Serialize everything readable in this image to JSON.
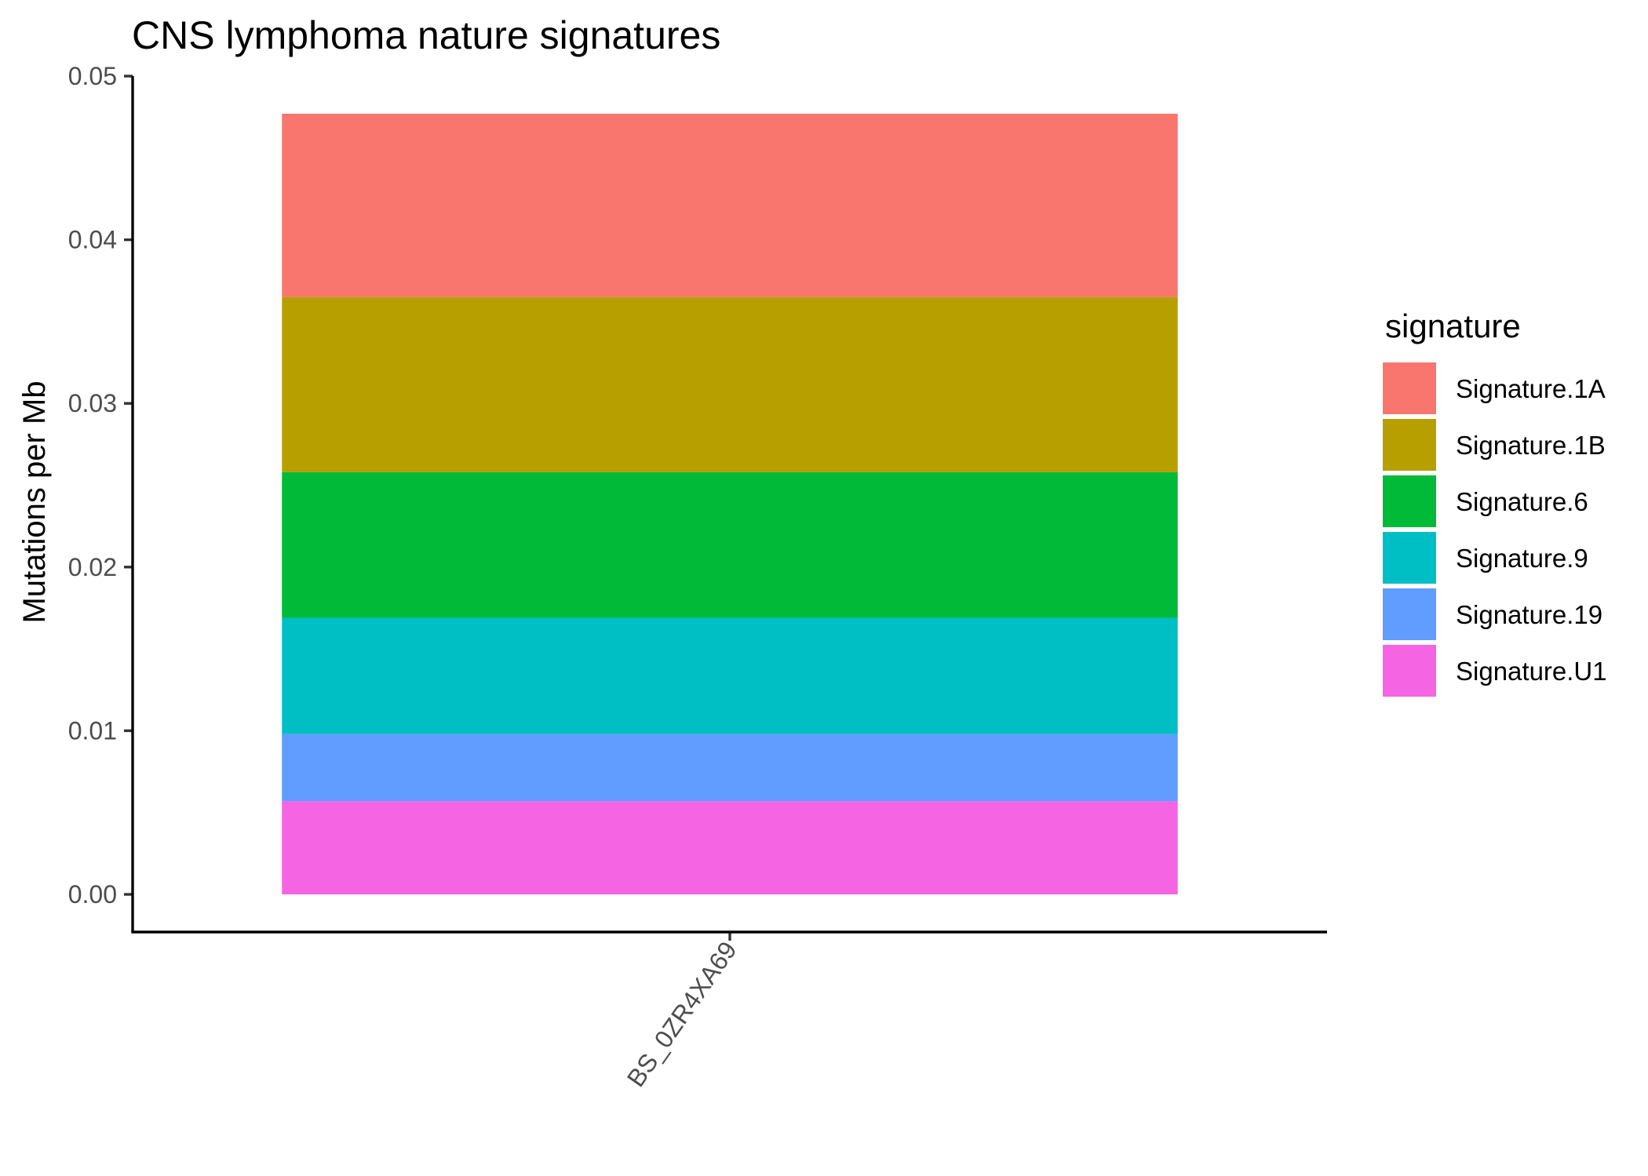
{
  "chart_data": {
    "type": "bar",
    "stacked": true,
    "title": "CNS lymphoma nature signatures",
    "xlabel": "",
    "ylabel": "Mutations per Mb",
    "categories": [
      "BS_0ZR4XA69"
    ],
    "ylim": [
      -0.0023,
      0.05
    ],
    "yticks": [
      0.0,
      0.01,
      0.02,
      0.03,
      0.04,
      0.05
    ],
    "ytick_labels": [
      "0.00",
      "0.01",
      "0.02",
      "0.03",
      "0.04",
      "0.05"
    ],
    "grid": false,
    "legend": {
      "title": "signature",
      "position": "right"
    },
    "series": [
      {
        "name": "Signature.U1",
        "color": "#F564E3",
        "values": [
          0.0057
        ]
      },
      {
        "name": "Signature.19",
        "color": "#619CFF",
        "values": [
          0.0041
        ]
      },
      {
        "name": "Signature.9",
        "color": "#00BFC4",
        "values": [
          0.0071
        ]
      },
      {
        "name": "Signature.6",
        "color": "#00BA38",
        "values": [
          0.0089
        ]
      },
      {
        "name": "Signature.1B",
        "color": "#B79F00",
        "values": [
          0.0107
        ]
      },
      {
        "name": "Signature.1A",
        "color": "#F8766D",
        "values": [
          0.0112
        ]
      }
    ],
    "legend_order": [
      "Signature.1A",
      "Signature.1B",
      "Signature.6",
      "Signature.9",
      "Signature.19",
      "Signature.U1"
    ]
  }
}
